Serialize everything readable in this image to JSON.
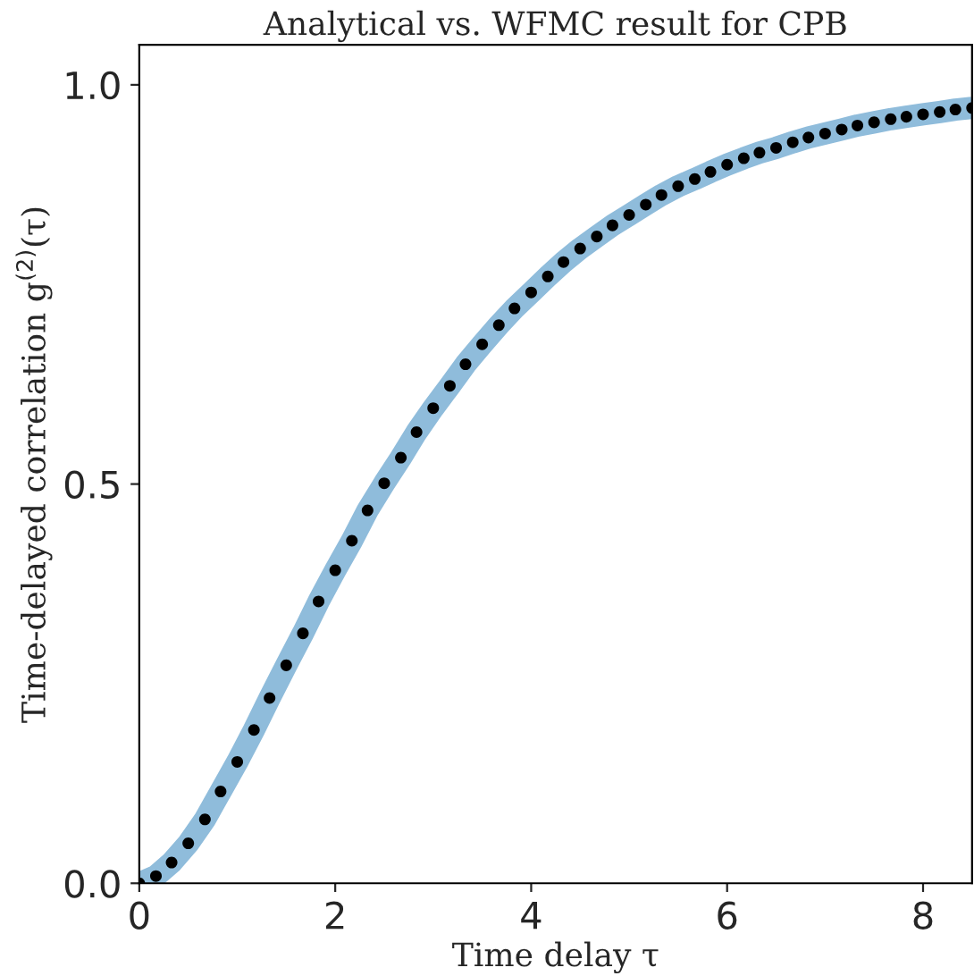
{
  "chart_data": {
    "type": "line",
    "title": "Analytical vs. WFMC result for CPB",
    "xlabel": "Time delay τ",
    "ylabel": "Time-delayed correlation g$^{(2)}$(τ)",
    "xlim": [
      0,
      8.5
    ],
    "xticks": [
      0,
      2,
      4,
      6,
      8
    ],
    "ylim": [
      0,
      1.05
    ],
    "yticks": [
      {
        "value": 0,
        "label": "0.0"
      },
      {
        "value": 0.5,
        "label": "0.5"
      },
      {
        "value": 1,
        "label": "1.0"
      }
    ],
    "grid": false,
    "legend": false,
    "series": [
      {
        "color": "#8fbcdb",
        "x": [
          0,
          0.17,
          0.33,
          0.5,
          0.67,
          0.83,
          1.0,
          1.17,
          1.33,
          1.5,
          1.67,
          1.83,
          2.0,
          2.17,
          2.33,
          2.5,
          2.67,
          2.83,
          3.0,
          3.17,
          3.33,
          3.5,
          3.67,
          3.83,
          4.0,
          4.17,
          4.33,
          4.5,
          4.67,
          4.83,
          5.0,
          5.17,
          5.33,
          5.5,
          5.67,
          5.83,
          6.0,
          6.17,
          6.33,
          6.5,
          6.67,
          6.83,
          7.0,
          7.17,
          7.33,
          7.5,
          7.67,
          7.83,
          8.0,
          8.17,
          8.33,
          8.5
        ],
        "values": [
          0.0,
          0.009,
          0.026,
          0.05,
          0.08,
          0.115,
          0.152,
          0.192,
          0.232,
          0.273,
          0.313,
          0.353,
          0.392,
          0.429,
          0.467,
          0.501,
          0.533,
          0.565,
          0.595,
          0.623,
          0.65,
          0.675,
          0.699,
          0.72,
          0.74,
          0.76,
          0.778,
          0.795,
          0.81,
          0.824,
          0.837,
          0.85,
          0.862,
          0.873,
          0.882,
          0.891,
          0.9,
          0.908,
          0.915,
          0.921,
          0.928,
          0.934,
          0.939,
          0.944,
          0.949,
          0.953,
          0.957,
          0.96,
          0.963,
          0.966,
          0.969,
          0.971
        ]
      },
      {
        "type": "scatter",
        "color": "#000000",
        "marker": "circle",
        "x": [
          0,
          0.17,
          0.33,
          0.5,
          0.67,
          0.83,
          1.0,
          1.17,
          1.33,
          1.5,
          1.67,
          1.83,
          2.0,
          2.17,
          2.33,
          2.5,
          2.67,
          2.83,
          3.0,
          3.17,
          3.33,
          3.5,
          3.67,
          3.83,
          4.0,
          4.17,
          4.33,
          4.5,
          4.67,
          4.83,
          5.0,
          5.17,
          5.33,
          5.5,
          5.67,
          5.83,
          6.0,
          6.17,
          6.33,
          6.5,
          6.67,
          6.83,
          7.0,
          7.17,
          7.33,
          7.5,
          7.67,
          7.83,
          8.0,
          8.17,
          8.33,
          8.5
        ],
        "values": [
          0.0,
          0.009,
          0.026,
          0.05,
          0.08,
          0.115,
          0.152,
          0.192,
          0.232,
          0.273,
          0.313,
          0.353,
          0.392,
          0.429,
          0.467,
          0.501,
          0.533,
          0.565,
          0.595,
          0.623,
          0.65,
          0.675,
          0.699,
          0.72,
          0.74,
          0.76,
          0.778,
          0.795,
          0.81,
          0.824,
          0.837,
          0.85,
          0.862,
          0.873,
          0.882,
          0.891,
          0.9,
          0.908,
          0.915,
          0.921,
          0.928,
          0.934,
          0.939,
          0.944,
          0.949,
          0.953,
          0.957,
          0.96,
          0.963,
          0.966,
          0.969,
          0.971
        ]
      }
    ]
  }
}
